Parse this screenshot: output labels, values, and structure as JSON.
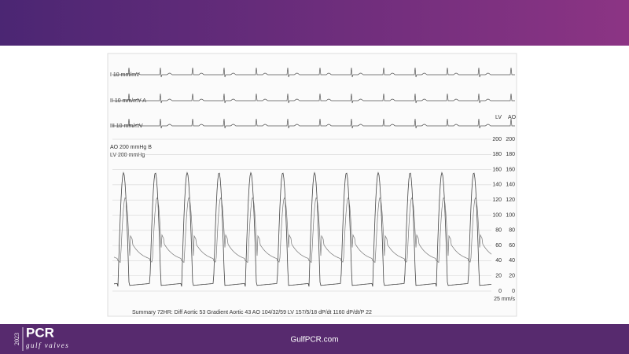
{
  "tracing": {
    "leads": [
      "I 10 mm/mV",
      "II 10 mm/mV A",
      "III 10 mm/mV"
    ],
    "pressure_header": [
      "LV",
      "AO"
    ],
    "channels": [
      "AO 200 mmHg B",
      "LV 200 mmHg"
    ],
    "scale_lv": [
      200,
      180,
      160,
      140,
      120,
      100,
      80,
      60,
      40,
      20,
      0
    ],
    "scale_ao": [
      200,
      180,
      160,
      140,
      120,
      100,
      80,
      60,
      40,
      20,
      0
    ],
    "speed": "25 mm/s",
    "summary": "Summary  72HR: Diff Aortic 53 Gradient Aortic 43 AO 104/32/59 LV 157/5/18 dP/dt 1160 dP/dt/P 22"
  },
  "footer": {
    "year": "2023",
    "brand": "PCR",
    "subbrand": "gulf valves",
    "url": "GulfPCR.com"
  }
}
